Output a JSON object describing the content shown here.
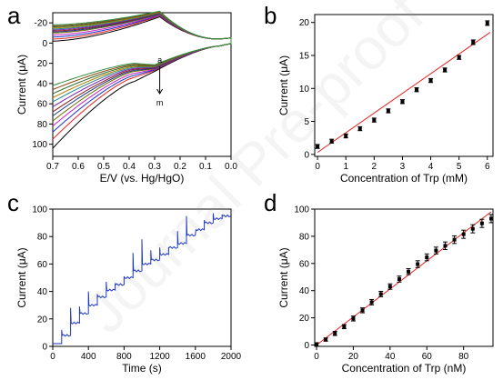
{
  "watermark": "Journal Pre-proof",
  "colors": {
    "axis": "#000000",
    "fit_line": "#e8231f",
    "amperometric": "#1a35c8",
    "cv_curves": [
      "#000000",
      "#e8231f",
      "#1a35c8",
      "#c81ec8",
      "#6b6b00",
      "#1e3a8a",
      "#8b1a1a",
      "#7a1fb0",
      "#2a8a8a",
      "#b07a00",
      "#2a6b2a",
      "#8b4513",
      "#2f8f3f"
    ]
  },
  "chart_data": [
    {
      "panel": "a",
      "type": "line",
      "xlabel": "E/V (vs. Hg/HgO)",
      "ylabel": "Current (μA)",
      "xlim": [
        0.7,
        0.0
      ],
      "ylim": [
        -30,
        112
      ],
      "x_inverted": true,
      "y_inverted": true,
      "xticks": [
        0.7,
        0.6,
        0.5,
        0.4,
        0.3,
        0.2,
        0.1,
        0.0
      ],
      "xtick_labels": [
        "0.7",
        "0.6",
        "0.5",
        "0.4",
        "0.3",
        "0.2",
        "0.1",
        "0.0"
      ],
      "yticks": [
        -20,
        0,
        20,
        40,
        60,
        80,
        100
      ],
      "ytick_labels": [
        "-20",
        "0",
        "20",
        "40",
        "60",
        "80",
        "100"
      ],
      "annotation_top": "a",
      "annotation_bottom": "m",
      "arrow": {
        "x": 0.28,
        "y_from": 22,
        "y_to": 50
      },
      "curve_count": 13,
      "fwd_start": [
        -2,
        -4,
        -6,
        -8,
        -10,
        -11,
        -12,
        -13,
        -14,
        -15,
        -16,
        -17,
        -18
      ],
      "peak_current": [
        -26,
        -27,
        -27.5,
        -28,
        -28.5,
        -29,
        -29.5,
        -30,
        -30,
        -30.5,
        -31,
        -31,
        -31.5
      ],
      "rev_end": [
        104,
        95,
        88,
        82,
        77,
        72,
        68,
        63,
        58,
        54,
        50,
        46,
        42
      ],
      "rev_peak": [
        28,
        27,
        26.5,
        26,
        25.5,
        25,
        24.5,
        24,
        23.5,
        23,
        22.5,
        22,
        21.5
      ],
      "rev_mid": [
        38,
        34,
        32,
        30,
        28,
        27,
        26,
        25,
        24,
        23,
        22,
        21,
        20
      ],
      "baseline": [
        -4,
        -5,
        3,
        0.5
      ]
    },
    {
      "panel": "b",
      "type": "scatter",
      "xlabel": "Concentration of Trp (mM)",
      "ylabel": "Current (μA)",
      "xlim": [
        -0.1,
        6.2
      ],
      "ylim": [
        -0.3,
        21.2
      ],
      "xticks": [
        0,
        1,
        2,
        3,
        4,
        5,
        6
      ],
      "xtick_labels": [
        "0",
        "1",
        "2",
        "3",
        "4",
        "5",
        "6"
      ],
      "yticks": [
        0,
        5,
        10,
        15,
        20
      ],
      "ytick_labels": [
        "0",
        "5",
        "10",
        "15",
        "20"
      ],
      "x": [
        0.0,
        0.5,
        1.0,
        1.5,
        2.0,
        2.5,
        3.0,
        3.5,
        4.0,
        4.5,
        5.0,
        5.5,
        6.0
      ],
      "y": [
        1.2,
        2.0,
        2.8,
        3.9,
        5.2,
        6.6,
        8.0,
        9.8,
        11.2,
        12.8,
        14.7,
        17.0,
        19.9
      ],
      "yerr": [
        0.3,
        0.3,
        0.3,
        0.3,
        0.3,
        0.3,
        0.3,
        0.3,
        0.3,
        0.3,
        0.3,
        0.35,
        0.35
      ],
      "fit_line": [
        [
          0.0,
          0.3
        ],
        [
          6.1,
          18.5
        ]
      ]
    },
    {
      "panel": "c",
      "type": "line",
      "xlabel": "Time (s)",
      "ylabel": "Current (μA)",
      "xlim": [
        0,
        2000
      ],
      "ylim": [
        0,
        100
      ],
      "xticks": [
        0,
        400,
        800,
        1200,
        1600,
        2000
      ],
      "xtick_labels": [
        "0",
        "400",
        "800",
        "1200",
        "1600",
        "2000"
      ],
      "yticks": [
        0,
        20,
        40,
        60,
        80,
        100
      ],
      "ytick_labels": [
        "0",
        "20",
        "40",
        "60",
        "80",
        "100"
      ],
      "step_times": [
        100,
        200,
        300,
        400,
        500,
        600,
        700,
        800,
        900,
        1000,
        1100,
        1200,
        1300,
        1400,
        1500,
        1600,
        1700,
        1800,
        1900
      ],
      "step_levels": [
        2,
        8,
        17,
        24,
        30,
        36,
        41,
        45,
        50,
        55,
        60,
        63,
        67,
        72,
        75,
        81,
        85,
        90,
        93,
        95
      ],
      "spike_peaks": [
        12,
        28,
        29,
        40,
        38,
        47,
        46,
        51,
        68,
        78,
        70,
        72,
        72,
        84,
        95,
        82,
        92,
        97,
        96
      ]
    },
    {
      "panel": "d",
      "type": "scatter",
      "xlabel": "Concentration of Trp (nM)",
      "ylabel": "Current (μA)",
      "xlim": [
        -1,
        96
      ],
      "ylim": [
        -1,
        100
      ],
      "xticks": [
        0,
        20,
        40,
        60,
        80
      ],
      "xtick_labels": [
        "0",
        "20",
        "40",
        "60",
        "80"
      ],
      "yticks": [
        0,
        20,
        40,
        60,
        80,
        100
      ],
      "ytick_labels": [
        "0",
        "20",
        "40",
        "60",
        "80",
        "100"
      ],
      "x": [
        0,
        5,
        10,
        15,
        20,
        25,
        30,
        35,
        40,
        45,
        50,
        55,
        60,
        65,
        70,
        75,
        80,
        85,
        90,
        95
      ],
      "y": [
        0.5,
        4.0,
        8.5,
        13.5,
        19.5,
        25.5,
        31.5,
        37.5,
        43.0,
        48.5,
        54.0,
        59.5,
        64.5,
        69.5,
        73.0,
        77.5,
        81.5,
        85.5,
        89.5,
        93.0
      ],
      "yerr": [
        1.2,
        1.2,
        1.5,
        1.5,
        1.8,
        1.8,
        2.0,
        2.0,
        2.0,
        2.2,
        2.2,
        2.5,
        2.5,
        2.5,
        2.8,
        2.8,
        3.0,
        3.0,
        3.0,
        3.0
      ],
      "fit_line": [
        [
          0,
          0
        ],
        [
          95,
          98
        ]
      ]
    }
  ]
}
